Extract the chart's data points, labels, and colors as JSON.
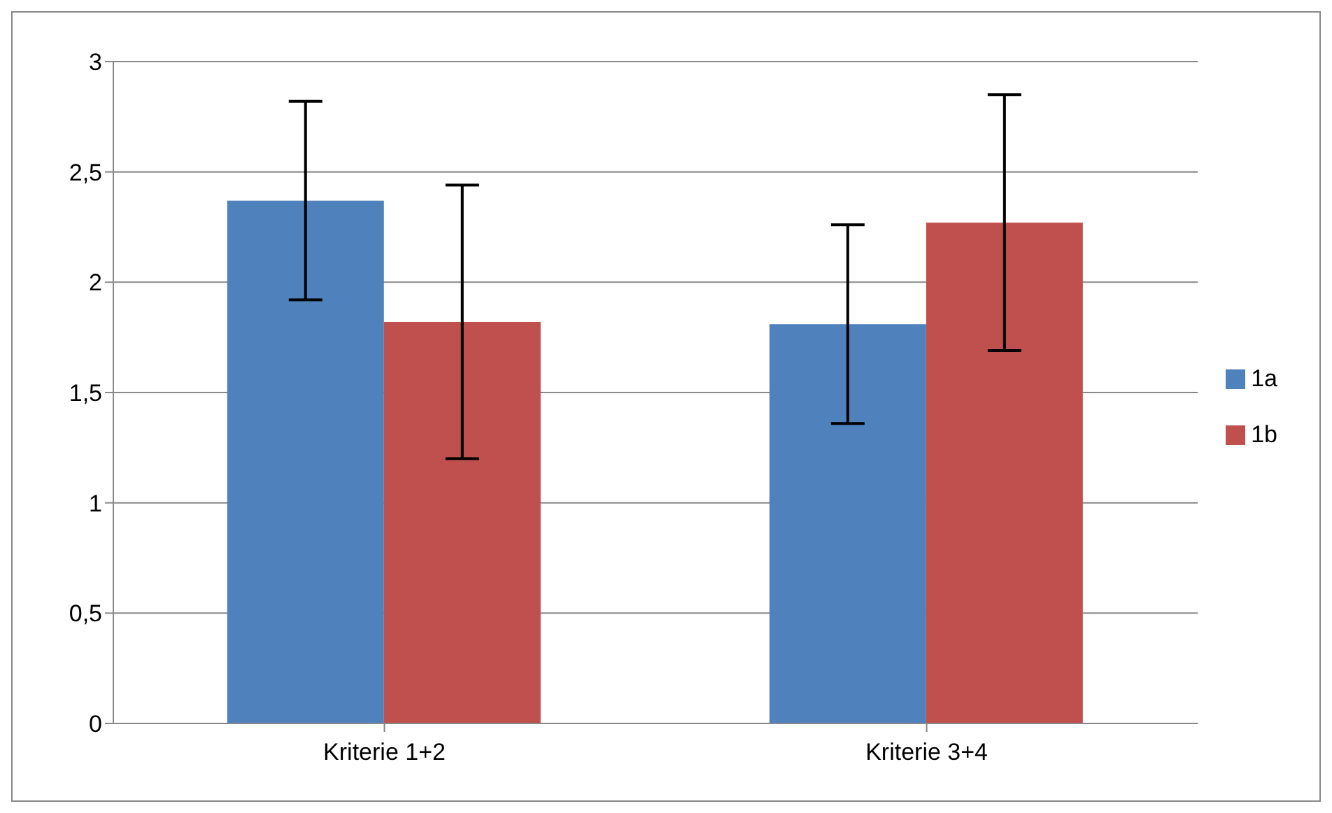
{
  "chart_data": {
    "type": "bar",
    "categories": [
      "Kriterie 1+2",
      "Kriterie 3+4"
    ],
    "series": [
      {
        "name": "1a",
        "color": "#4f81bd",
        "values": [
          2.37,
          1.81
        ],
        "errors": [
          0.45,
          0.45
        ]
      },
      {
        "name": "1b",
        "color": "#c0504d",
        "values": [
          1.82,
          2.27
        ],
        "errors": [
          0.62,
          0.58
        ]
      }
    ],
    "ylim": [
      0,
      3
    ],
    "yticks": [
      0,
      {
        "value": 0.5,
        "label": "0,5"
      },
      1,
      {
        "value": 1.5,
        "label": "1,5"
      },
      2,
      {
        "value": 2.5,
        "label": "2,5"
      },
      3
    ],
    "grid": "y",
    "legend": "right"
  }
}
